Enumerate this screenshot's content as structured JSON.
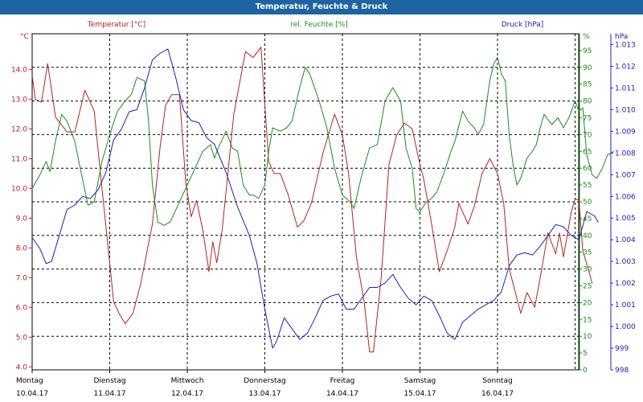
{
  "title": "Temperatur, Feuchte & Druck",
  "colors": {
    "temperature": "#b42323",
    "humidity": "#1e8a1e",
    "pressure": "#2020b0",
    "grid": "#000000",
    "titlebar": "#1e64a0"
  },
  "chart_data": {
    "type": "line",
    "title": "Temperatur, Feuchte & Druck",
    "x_categories": [
      {
        "day": "Montag",
        "date": "10.04.17"
      },
      {
        "day": "Dienstag",
        "date": "11.04.17"
      },
      {
        "day": "Mittwoch",
        "date": "12.04.17"
      },
      {
        "day": "Donnerstag",
        "date": "13.04.17"
      },
      {
        "day": "Freitag",
        "date": "14.04.17"
      },
      {
        "day": "Samstag",
        "date": "15.04.17"
      },
      {
        "day": "Sonntag",
        "date": "16.04.17"
      }
    ],
    "x_range_days": [
      0,
      7
    ],
    "axes": {
      "temperature": {
        "label": "Temperatur [°C]",
        "unit": "°C",
        "range": [
          3.9,
          15.2
        ],
        "ticks": [
          "4.0",
          "5.0",
          "6.0",
          "7.0",
          "8.0",
          "9.0",
          "10.0",
          "11.0",
          "12.0",
          "13.0",
          "14.0"
        ]
      },
      "humidity": {
        "label": "rel. Feuchte [%]",
        "unit": "%",
        "range": [
          0,
          100
        ],
        "ticks": [
          "0",
          "5",
          "10",
          "15",
          "20",
          "25",
          "30",
          "35",
          "40",
          "45",
          "50",
          "55",
          "60",
          "65",
          "70",
          "75",
          "80",
          "85",
          "90",
          "95"
        ]
      },
      "pressure": {
        "label": "Druck [hPa]",
        "unit": "hPa",
        "range": [
          998,
          1013.5
        ],
        "ticks": [
          "998",
          "999",
          "1.000",
          "1.001",
          "1.002",
          "1.003",
          "1.004",
          "1.005",
          "1.006",
          "1.007",
          "1.008",
          "1.009",
          "1.010",
          "1.011",
          "1.012",
          "1.013"
        ]
      }
    },
    "series": [
      {
        "name": "Temperatur [°C]",
        "axis": "temperature",
        "color": "#b42323",
        "points": [
          [
            0,
            13.8
          ],
          [
            0.04,
            13.0
          ],
          [
            0.12,
            12.9
          ],
          [
            0.2,
            14.2
          ],
          [
            0.3,
            12.4
          ],
          [
            0.45,
            11.9
          ],
          [
            0.55,
            11.9
          ],
          [
            0.68,
            13.3
          ],
          [
            0.8,
            12.6
          ],
          [
            0.9,
            10.0
          ],
          [
            1.0,
            7.5
          ],
          [
            1.05,
            6.2
          ],
          [
            1.12,
            5.8
          ],
          [
            1.2,
            5.45
          ],
          [
            1.3,
            5.8
          ],
          [
            1.4,
            6.8
          ],
          [
            1.55,
            8.8
          ],
          [
            1.65,
            11.4
          ],
          [
            1.72,
            12.8
          ],
          [
            1.8,
            13.15
          ],
          [
            1.9,
            13.15
          ],
          [
            1.98,
            10.2
          ],
          [
            2.05,
            9.05
          ],
          [
            2.12,
            9.6
          ],
          [
            2.2,
            8.6
          ],
          [
            2.28,
            7.2
          ],
          [
            2.33,
            8.2
          ],
          [
            2.38,
            7.5
          ],
          [
            2.45,
            8.6
          ],
          [
            2.6,
            12.5
          ],
          [
            2.75,
            14.6
          ],
          [
            2.85,
            14.4
          ],
          [
            2.95,
            14.75
          ],
          [
            3.05,
            10.9
          ],
          [
            3.12,
            10.5
          ],
          [
            3.2,
            10.5
          ],
          [
            3.3,
            9.8
          ],
          [
            3.42,
            8.7
          ],
          [
            3.5,
            8.9
          ],
          [
            3.6,
            9.5
          ],
          [
            3.75,
            11.2
          ],
          [
            3.9,
            12.5
          ],
          [
            4.0,
            11.8
          ],
          [
            4.08,
            10.5
          ],
          [
            4.18,
            7.7
          ],
          [
            4.28,
            6.2
          ],
          [
            4.35,
            4.5
          ],
          [
            4.4,
            4.5
          ],
          [
            4.5,
            7.0
          ],
          [
            4.6,
            10.8
          ],
          [
            4.7,
            11.8
          ],
          [
            4.8,
            12.2
          ],
          [
            4.9,
            12.0
          ],
          [
            5.0,
            10.8
          ],
          [
            5.05,
            10.3
          ],
          [
            5.15,
            8.8
          ],
          [
            5.25,
            7.2
          ],
          [
            5.35,
            7.9
          ],
          [
            5.45,
            8.7
          ],
          [
            5.5,
            9.5
          ],
          [
            5.62,
            8.8
          ],
          [
            5.7,
            9.4
          ],
          [
            5.8,
            10.5
          ],
          [
            5.9,
            11.0
          ],
          [
            6.0,
            10.5
          ],
          [
            6.08,
            9.5
          ],
          [
            6.15,
            7.3
          ],
          [
            6.25,
            6.3
          ],
          [
            6.3,
            5.8
          ],
          [
            6.38,
            6.5
          ],
          [
            6.48,
            6.0
          ],
          [
            6.55,
            7.0
          ],
          [
            6.65,
            8.5
          ],
          [
            6.75,
            7.8
          ],
          [
            6.8,
            8.5
          ],
          [
            6.85,
            7.7
          ],
          [
            6.95,
            9.2
          ],
          [
            7.0,
            9.65
          ],
          [
            7.05,
            9.6
          ],
          [
            7.1,
            7.9
          ],
          [
            7.18,
            7.2
          ],
          [
            7.22,
            6.8
          ]
        ]
      },
      {
        "name": "rel. Feuchte [%]",
        "axis": "humidity",
        "color": "#1e8a1e",
        "points": [
          [
            0,
            54
          ],
          [
            0.1,
            58
          ],
          [
            0.18,
            62
          ],
          [
            0.23,
            59
          ],
          [
            0.3,
            68
          ],
          [
            0.38,
            76
          ],
          [
            0.45,
            74
          ],
          [
            0.55,
            68
          ],
          [
            0.62,
            60
          ],
          [
            0.72,
            49
          ],
          [
            0.8,
            50
          ],
          [
            0.9,
            62
          ],
          [
            1.0,
            70
          ],
          [
            1.1,
            77
          ],
          [
            1.2,
            80
          ],
          [
            1.28,
            82
          ],
          [
            1.35,
            87
          ],
          [
            1.45,
            86
          ],
          [
            1.5,
            74
          ],
          [
            1.55,
            55
          ],
          [
            1.62,
            44
          ],
          [
            1.7,
            43
          ],
          [
            1.78,
            44
          ],
          [
            1.9,
            50
          ],
          [
            2.0,
            55
          ],
          [
            2.1,
            60
          ],
          [
            2.2,
            65
          ],
          [
            2.3,
            67
          ],
          [
            2.35,
            63
          ],
          [
            2.4,
            66
          ],
          [
            2.5,
            71
          ],
          [
            2.58,
            66
          ],
          [
            2.65,
            65
          ],
          [
            2.72,
            55
          ],
          [
            2.8,
            52
          ],
          [
            2.85,
            52
          ],
          [
            2.92,
            51
          ],
          [
            3.0,
            55
          ],
          [
            3.05,
            65
          ],
          [
            3.1,
            72
          ],
          [
            3.2,
            71
          ],
          [
            3.28,
            72
          ],
          [
            3.35,
            74
          ],
          [
            3.45,
            84
          ],
          [
            3.52,
            90
          ],
          [
            3.58,
            88
          ],
          [
            3.7,
            80
          ],
          [
            3.8,
            72
          ],
          [
            3.9,
            60
          ],
          [
            4.0,
            52
          ],
          [
            4.1,
            50
          ],
          [
            4.15,
            48
          ],
          [
            4.25,
            58
          ],
          [
            4.35,
            66
          ],
          [
            4.45,
            67
          ],
          [
            4.55,
            80
          ],
          [
            4.65,
            84
          ],
          [
            4.75,
            80
          ],
          [
            4.82,
            66
          ],
          [
            4.9,
            60
          ],
          [
            4.95,
            48
          ],
          [
            5.0,
            47
          ],
          [
            5.08,
            50
          ],
          [
            5.15,
            51
          ],
          [
            5.22,
            53
          ],
          [
            5.3,
            58
          ],
          [
            5.4,
            65
          ],
          [
            5.45,
            68
          ],
          [
            5.55,
            77
          ],
          [
            5.62,
            74
          ],
          [
            5.7,
            72
          ],
          [
            5.75,
            70
          ],
          [
            5.82,
            73
          ],
          [
            5.9,
            86
          ],
          [
            5.95,
            91
          ],
          [
            6.0,
            93
          ],
          [
            6.05,
            88
          ],
          [
            6.1,
            86
          ],
          [
            6.15,
            70
          ],
          [
            6.2,
            61
          ],
          [
            6.25,
            55
          ],
          [
            6.3,
            57
          ],
          [
            6.38,
            63
          ],
          [
            6.45,
            65
          ],
          [
            6.5,
            67
          ],
          [
            6.55,
            72
          ],
          [
            6.6,
            76
          ],
          [
            6.7,
            73
          ],
          [
            6.78,
            75
          ],
          [
            6.85,
            72
          ],
          [
            6.92,
            75
          ],
          [
            7.0,
            80
          ],
          [
            7.05,
            77
          ],
          [
            7.1,
            78
          ],
          [
            7.15,
            64
          ],
          [
            7.22,
            58
          ],
          [
            7.28,
            57
          ],
          [
            7.35,
            60
          ],
          [
            7.42,
            64
          ],
          [
            7.5,
            65
          ]
        ]
      },
      {
        "name": "Druck [hPa]",
        "axis": "pressure",
        "color": "#2020b0",
        "points": [
          [
            0,
            1004.1
          ],
          [
            0.1,
            1003.6
          ],
          [
            0.18,
            1002.9
          ],
          [
            0.25,
            1003.0
          ],
          [
            0.35,
            1004.2
          ],
          [
            0.45,
            1005.4
          ],
          [
            0.55,
            1005.6
          ],
          [
            0.65,
            1006.0
          ],
          [
            0.75,
            1005.9
          ],
          [
            0.85,
            1006.3
          ],
          [
            0.95,
            1007.1
          ],
          [
            1.05,
            1008.6
          ],
          [
            1.15,
            1009.1
          ],
          [
            1.25,
            1009.9
          ],
          [
            1.35,
            1010.0
          ],
          [
            1.45,
            1011.0
          ],
          [
            1.55,
            1012.3
          ],
          [
            1.65,
            1012.6
          ],
          [
            1.75,
            1012.8
          ],
          [
            1.85,
            1011.5
          ],
          [
            1.95,
            1010.0
          ],
          [
            2.05,
            1009.5
          ],
          [
            2.15,
            1009.4
          ],
          [
            2.25,
            1008.7
          ],
          [
            2.35,
            1008.4
          ],
          [
            2.5,
            1007.1
          ],
          [
            2.65,
            1005.5
          ],
          [
            2.8,
            1004.2
          ],
          [
            2.9,
            1002.9
          ],
          [
            3.0,
            1000.8
          ],
          [
            3.1,
            999.0
          ],
          [
            3.15,
            999.3
          ],
          [
            3.25,
            1000.4
          ],
          [
            3.35,
            999.9
          ],
          [
            3.45,
            999.4
          ],
          [
            3.55,
            999.7
          ],
          [
            3.65,
            1000.4
          ],
          [
            3.75,
            1001.2
          ],
          [
            3.85,
            1001.4
          ],
          [
            3.95,
            1001.5
          ],
          [
            4.05,
            1000.8
          ],
          [
            4.15,
            1000.8
          ],
          [
            4.25,
            1001.3
          ],
          [
            4.35,
            1001.8
          ],
          [
            4.45,
            1001.8
          ],
          [
            4.55,
            1002.0
          ],
          [
            4.65,
            1002.4
          ],
          [
            4.75,
            1001.8
          ],
          [
            4.85,
            1001.3
          ],
          [
            4.95,
            1001.0
          ],
          [
            5.05,
            1001.4
          ],
          [
            5.15,
            1001.2
          ],
          [
            5.25,
            1000.5
          ],
          [
            5.35,
            999.7
          ],
          [
            5.45,
            999.4
          ],
          [
            5.55,
            1000.2
          ],
          [
            5.65,
            1000.5
          ],
          [
            5.75,
            1000.8
          ],
          [
            5.85,
            1001.0
          ],
          [
            5.95,
            1001.2
          ],
          [
            6.05,
            1001.6
          ],
          [
            6.15,
            1002.8
          ],
          [
            6.25,
            1003.3
          ],
          [
            6.35,
            1003.4
          ],
          [
            6.45,
            1003.3
          ],
          [
            6.55,
            1003.7
          ],
          [
            6.65,
            1004.2
          ],
          [
            6.75,
            1004.7
          ],
          [
            6.85,
            1004.6
          ],
          [
            6.95,
            1004.2
          ],
          [
            7.05,
            1004.0
          ],
          [
            7.15,
            1005.3
          ],
          [
            7.25,
            1005.1
          ],
          [
            7.3,
            1004.8
          ]
        ]
      }
    ]
  }
}
